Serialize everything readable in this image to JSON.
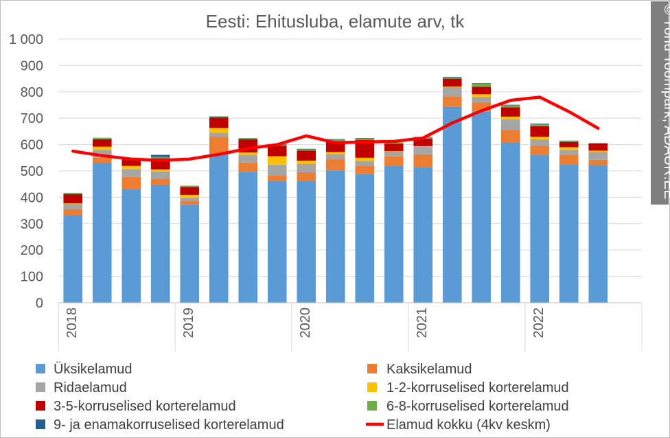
{
  "chart_data": {
    "type": "bar",
    "stacked": true,
    "title": "Eesti: Ehitusluba, elamute arv, tk",
    "watermark": "© Tõnu Toompark, ADAUR.EE",
    "ylim": [
      0,
      1000
    ],
    "yticks": [
      0,
      100,
      200,
      300,
      400,
      500,
      600,
      700,
      800,
      900,
      1000
    ],
    "ytick_labels": [
      "0",
      "100",
      "200",
      "300",
      "400",
      "500",
      "600",
      "700",
      "800",
      "900",
      "1 000"
    ],
    "grid": true,
    "legend_position": "bottom",
    "year_labels": [
      {
        "label": "2018",
        "start_index": 0
      },
      {
        "label": "2019",
        "start_index": 4
      },
      {
        "label": "2020",
        "start_index": 8
      },
      {
        "label": "2021",
        "start_index": 12
      },
      {
        "label": "2022",
        "start_index": 16
      }
    ],
    "categories": [
      "2018 Q1",
      "2018 Q2",
      "2018 Q3",
      "2018 Q4",
      "2019 Q1",
      "2019 Q2",
      "2019 Q3",
      "2019 Q4",
      "2020 Q1",
      "2020 Q2",
      "2020 Q3",
      "2020 Q4",
      "2021 Q1",
      "2021 Q2",
      "2021 Q3",
      "2021 Q4",
      "2022 Q1",
      "2022 Q2",
      "2022 Q3",
      "2022 Q4"
    ],
    "series": [
      {
        "name": "Üksikelamud",
        "color": "#5b9bd5",
        "values": [
          332,
          530,
          432,
          448,
          372,
          565,
          497,
          462,
          463,
          502,
          488,
          520,
          515,
          743,
          726,
          608,
          560,
          525,
          522,
          0
        ]
      },
      {
        "name": "Kaksikelamud",
        "color": "#ed7d31",
        "values": [
          23,
          20,
          45,
          22,
          15,
          65,
          35,
          22,
          32,
          42,
          32,
          35,
          48,
          40,
          35,
          48,
          35,
          35,
          20,
          0
        ]
      },
      {
        "name": "Ridaelamud",
        "color": "#a5a5a5",
        "values": [
          20,
          30,
          30,
          28,
          12,
          15,
          28,
          40,
          32,
          20,
          18,
          18,
          28,
          35,
          20,
          40,
          25,
          20,
          30,
          0
        ]
      },
      {
        "name": "1-2-korruselised korterelamud",
        "color": "#ffc000",
        "values": [
          2,
          12,
          12,
          8,
          10,
          18,
          10,
          32,
          12,
          8,
          12,
          2,
          3,
          2,
          10,
          10,
          10,
          10,
          5,
          0
        ]
      },
      {
        "name": "3-5-korruselised korterelamud",
        "color": "#c00000",
        "values": [
          35,
          28,
          28,
          42,
          30,
          40,
          50,
          40,
          38,
          42,
          68,
          28,
          28,
          30,
          28,
          35,
          40,
          20,
          28,
          0
        ]
      },
      {
        "name": "6-8-korruselised korterelamud",
        "color": "#70ad47",
        "values": [
          5,
          6,
          3,
          5,
          5,
          2,
          5,
          4,
          5,
          5,
          5,
          5,
          5,
          5,
          12,
          8,
          8,
          3,
          0,
          0
        ]
      },
      {
        "name": "9- ja enamakorruselised korterelamud",
        "color": "#255e91",
        "values": [
          0,
          0,
          0,
          8,
          0,
          2,
          0,
          2,
          2,
          2,
          2,
          0,
          2,
          2,
          2,
          2,
          2,
          2,
          0,
          0
        ]
      }
    ],
    "line": {
      "name": "Elamud kokku (4kv keskm)",
      "color": "#ff0000",
      "values": [
        575,
        558,
        545,
        540,
        545,
        563,
        585,
        600,
        633,
        607,
        610,
        612,
        625,
        682,
        728,
        768,
        780,
        725,
        662,
        null
      ]
    }
  }
}
